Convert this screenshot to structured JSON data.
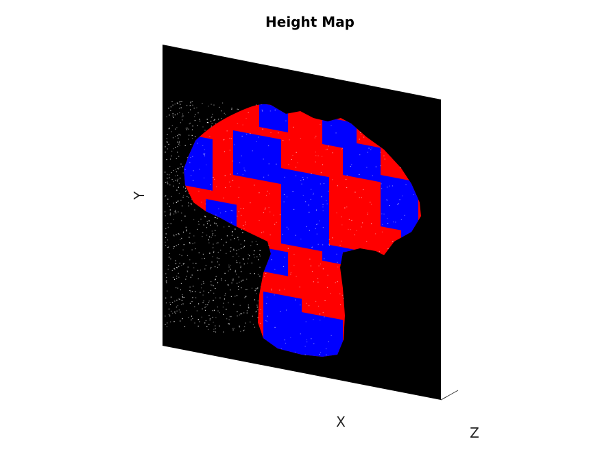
{
  "chart_data": {
    "type": "surface3d",
    "title": "Height Map",
    "xlabel": "X",
    "ylabel": "Y",
    "zlabel": "Z",
    "background_plane_color": "#000000",
    "checker_colors": [
      "#ff0000",
      "#0000ff"
    ],
    "point_cloud_color": "#ffffff",
    "grid": false,
    "legend": "none",
    "tick_labels": []
  }
}
